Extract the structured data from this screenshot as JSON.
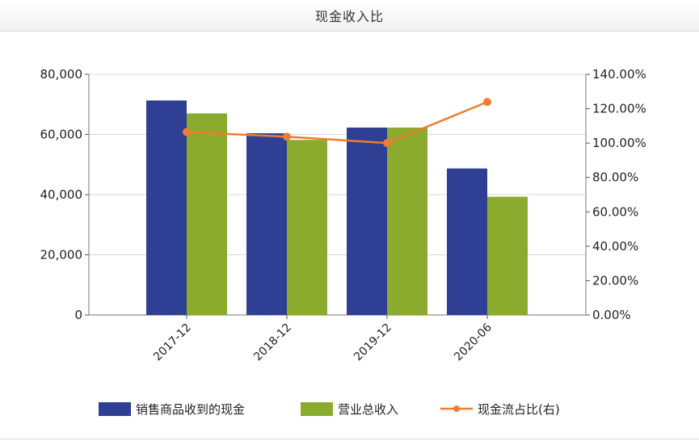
{
  "chart_data": {
    "type": "bar",
    "title": "现金收入比",
    "categories": [
      "2017-12",
      "2018-12",
      "2019-12",
      "2020-06"
    ],
    "series": [
      {
        "name": "销售商品收到的现金",
        "kind": "bar",
        "axis": "left",
        "color": "#2e3f94",
        "values": [
          71300,
          60400,
          62300,
          48700
        ]
      },
      {
        "name": "营业总收入",
        "kind": "bar",
        "axis": "left",
        "color": "#8aab2d",
        "values": [
          67000,
          58200,
          62300,
          39300
        ]
      },
      {
        "name": "现金流占比(右)",
        "kind": "line",
        "axis": "right",
        "color": "#f07c32",
        "values": [
          106.4,
          103.7,
          100.0,
          123.9
        ]
      }
    ],
    "y_left": {
      "min": 0,
      "max": 80000,
      "ticks": [
        "0",
        "20,000",
        "40,000",
        "60,000",
        "80,000"
      ]
    },
    "y_right": {
      "min": 0,
      "max": 140,
      "ticks": [
        "0.00%",
        "20.00%",
        "40.00%",
        "60.00%",
        "80.00%",
        "100.00%",
        "120.00%",
        "140.00%"
      ]
    },
    "grid": true,
    "legend_position": "bottom"
  }
}
